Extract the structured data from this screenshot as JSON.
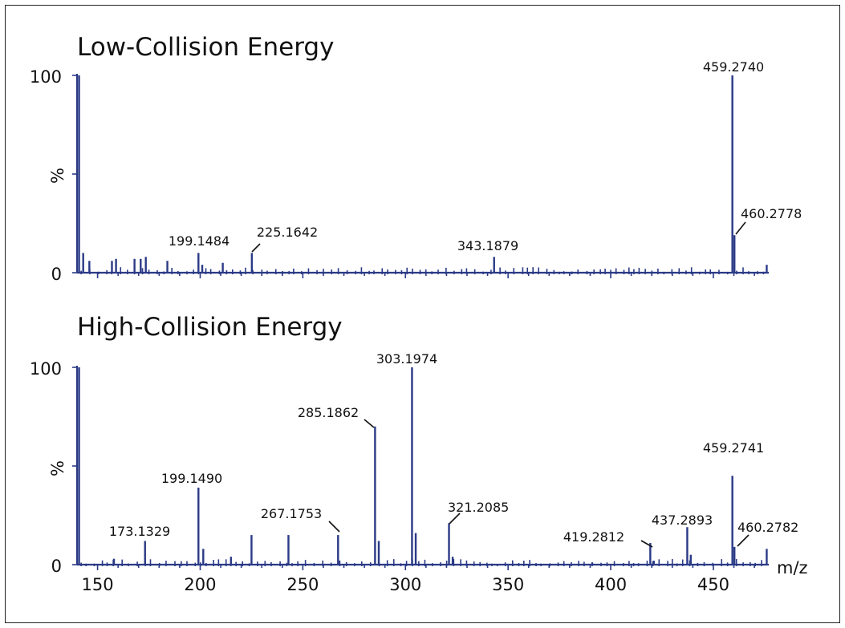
{
  "chart_data": [
    {
      "type": "bar",
      "title": "Low-Collision Energy",
      "ylabel": "%",
      "xlabel": "",
      "xlim": [
        140,
        477
      ],
      "ylim": [
        0,
        100
      ],
      "yticks": [
        "0",
        "100"
      ],
      "xticks": [],
      "peaks": [
        {
          "mz": 141.0,
          "intensity": 100
        },
        {
          "mz": 143.0,
          "intensity": 10
        },
        {
          "mz": 146.0,
          "intensity": 6
        },
        {
          "mz": 157.0,
          "intensity": 6
        },
        {
          "mz": 159.0,
          "intensity": 7
        },
        {
          "mz": 168.0,
          "intensity": 7
        },
        {
          "mz": 171.0,
          "intensity": 7
        },
        {
          "mz": 173.5,
          "intensity": 8
        },
        {
          "mz": 184.0,
          "intensity": 6
        },
        {
          "mz": 199.1484,
          "intensity": 10,
          "label": "199.1484"
        },
        {
          "mz": 201.0,
          "intensity": 4
        },
        {
          "mz": 211.0,
          "intensity": 5
        },
        {
          "mz": 225.1642,
          "intensity": 10,
          "label": "225.1642"
        },
        {
          "mz": 343.1879,
          "intensity": 8,
          "label": "343.1879"
        },
        {
          "mz": 459.274,
          "intensity": 100,
          "label": "459.2740"
        },
        {
          "mz": 460.2778,
          "intensity": 19,
          "label": "460.2778"
        },
        {
          "mz": 476.0,
          "intensity": 4
        }
      ]
    },
    {
      "type": "bar",
      "title": "High-Collision Energy",
      "ylabel": "%",
      "xlabel": "m/z",
      "xlim": [
        140,
        477
      ],
      "ylim": [
        0,
        100
      ],
      "yticks": [
        "0",
        "100"
      ],
      "xticks": [
        "150",
        "200",
        "250",
        "300",
        "350",
        "400",
        "450"
      ],
      "peaks": [
        {
          "mz": 141.0,
          "intensity": 100
        },
        {
          "mz": 158.0,
          "intensity": 3
        },
        {
          "mz": 173.1329,
          "intensity": 12,
          "label": "173.1329"
        },
        {
          "mz": 199.149,
          "intensity": 39,
          "label": "199.1490"
        },
        {
          "mz": 201.5,
          "intensity": 8
        },
        {
          "mz": 215.0,
          "intensity": 4
        },
        {
          "mz": 225.0,
          "intensity": 15
        },
        {
          "mz": 243.0,
          "intensity": 15
        },
        {
          "mz": 267.1753,
          "intensity": 15,
          "label": "267.1753"
        },
        {
          "mz": 285.1862,
          "intensity": 70,
          "label": "285.1862"
        },
        {
          "mz": 287.0,
          "intensity": 12
        },
        {
          "mz": 303.1974,
          "intensity": 100,
          "label": "303.1974"
        },
        {
          "mz": 305.0,
          "intensity": 16
        },
        {
          "mz": 321.2085,
          "intensity": 21,
          "label": "321.2085"
        },
        {
          "mz": 323.0,
          "intensity": 4
        },
        {
          "mz": 391.0,
          "intensity": 1
        },
        {
          "mz": 419.2812,
          "intensity": 11,
          "label": "419.2812"
        },
        {
          "mz": 421.0,
          "intensity": 2
        },
        {
          "mz": 437.2893,
          "intensity": 19,
          "label": "437.2893"
        },
        {
          "mz": 439.0,
          "intensity": 5
        },
        {
          "mz": 459.2741,
          "intensity": 45,
          "label": "459.2741"
        },
        {
          "mz": 460.2782,
          "intensity": 9,
          "label": "460.2782"
        },
        {
          "mz": 476.0,
          "intensity": 8
        }
      ]
    }
  ]
}
